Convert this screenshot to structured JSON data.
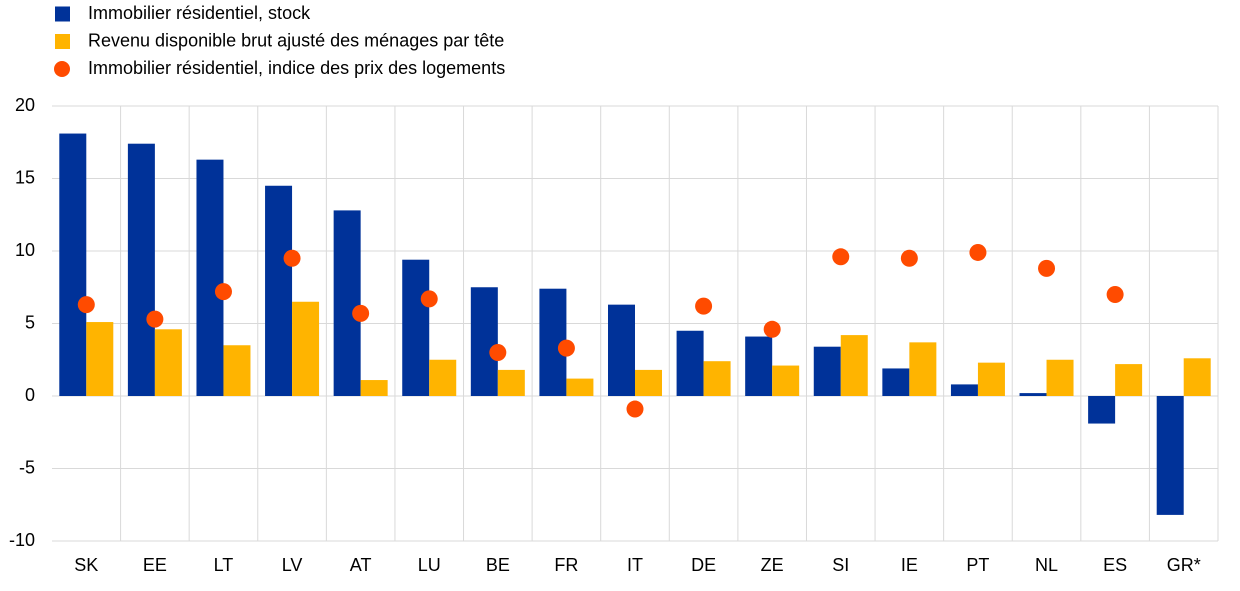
{
  "chart_data": {
    "type": "bar",
    "categories": [
      "SK",
      "EE",
      "LT",
      "LV",
      "AT",
      "LU",
      "BE",
      "FR",
      "IT",
      "DE",
      "ZE",
      "SI",
      "IE",
      "PT",
      "NL",
      "ES",
      "GR*"
    ],
    "series": [
      {
        "name": "Immobilier résidentiel, stock",
        "color": "#003299",
        "type": "bar",
        "values": [
          18.1,
          17.4,
          16.3,
          14.5,
          12.8,
          9.4,
          7.5,
          7.4,
          6.3,
          4.5,
          4.1,
          3.4,
          1.9,
          0.8,
          0.2,
          -1.9,
          -8.2
        ]
      },
      {
        "name": "Revenu disponible brut ajusté des ménages par tête",
        "color": "#ffb400",
        "type": "bar",
        "values": [
          5.1,
          4.6,
          3.5,
          6.5,
          1.1,
          2.5,
          1.8,
          1.2,
          1.8,
          2.4,
          2.1,
          4.2,
          3.7,
          2.3,
          2.5,
          2.2,
          2.6
        ]
      },
      {
        "name": "Immobilier résidentiel, indice des prix des logements",
        "color": "#ff4b00",
        "type": "scatter",
        "values": [
          6.3,
          5.3,
          7.2,
          9.5,
          5.7,
          6.7,
          3.0,
          3.3,
          -0.9,
          6.2,
          4.6,
          9.6,
          9.5,
          9.9,
          8.8,
          7.0,
          null
        ]
      }
    ],
    "ylim": [
      -10,
      20
    ],
    "yticks": [
      -10,
      -5,
      0,
      5,
      10,
      15,
      20
    ],
    "grid": true
  }
}
